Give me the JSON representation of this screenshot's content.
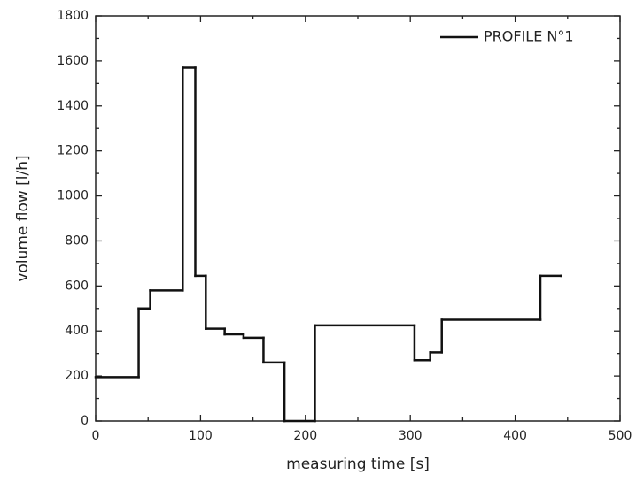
{
  "chart_data": {
    "type": "line",
    "step": "post",
    "xlabel": "measuring time [s]",
    "ylabel": "volume flow [l/h]",
    "x": [
      0,
      41,
      52,
      83,
      95,
      105,
      123,
      141,
      160,
      180,
      209,
      304,
      319,
      330,
      424,
      444
    ],
    "series": [
      {
        "name": "PROFILE N°1",
        "color": "#111111",
        "values": [
          195,
          500,
          580,
          1570,
          645,
          410,
          385,
          370,
          260,
          0,
          425,
          270,
          305,
          450,
          645,
          645
        ]
      }
    ],
    "xlim": [
      0,
      500
    ],
    "xticks": [
      0,
      100,
      200,
      300,
      400,
      500
    ],
    "ylim": [
      0,
      1800
    ],
    "yticks": [
      0,
      200,
      400,
      600,
      800,
      1000,
      1200,
      1400,
      1600,
      1800
    ],
    "legend": "upper right"
  }
}
